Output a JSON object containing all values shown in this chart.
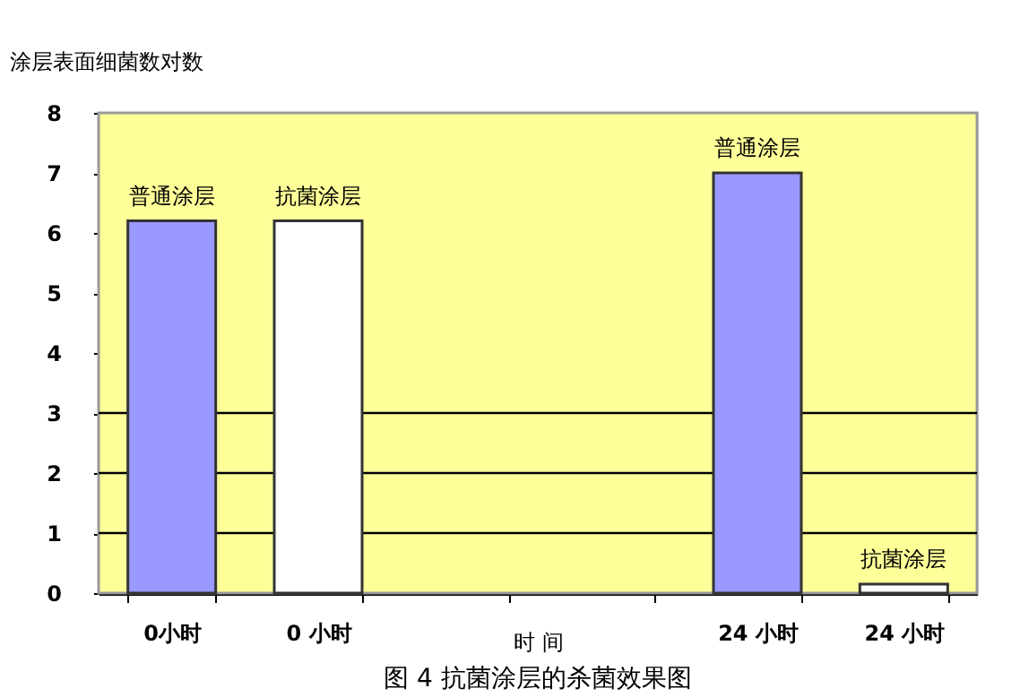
{
  "chart_data": {
    "type": "bar",
    "title": "图 4 抗菌涂层的杀菌效果图",
    "ylabel": "涂层表面细菌数对数",
    "xlabel": "时 间",
    "categories": [
      "0小时",
      "0 小时",
      null,
      null,
      "24 小时",
      "24 小时"
    ],
    "values": [
      6.2,
      6.2,
      null,
      null,
      7.0,
      0.15
    ],
    "colors": [
      "#9999ff",
      "#ffffff",
      null,
      null,
      "#9999ff",
      "#ffffff"
    ],
    "value_labels": [
      "普通涂层",
      "抗菌涂层",
      null,
      null,
      "普通涂层",
      "抗菌涂层"
    ],
    "ylim": [
      0,
      8
    ],
    "yticks": [
      0,
      1,
      2,
      3,
      4,
      5,
      6,
      7,
      8
    ],
    "ref_lines": [
      {
        "axis": "y",
        "value": 1,
        "label": null,
        "color": "#000000"
      },
      {
        "axis": "y",
        "value": 2,
        "label": null,
        "color": "#000000"
      },
      {
        "axis": "y",
        "value": 3,
        "label": null,
        "color": "#000000"
      }
    ]
  }
}
